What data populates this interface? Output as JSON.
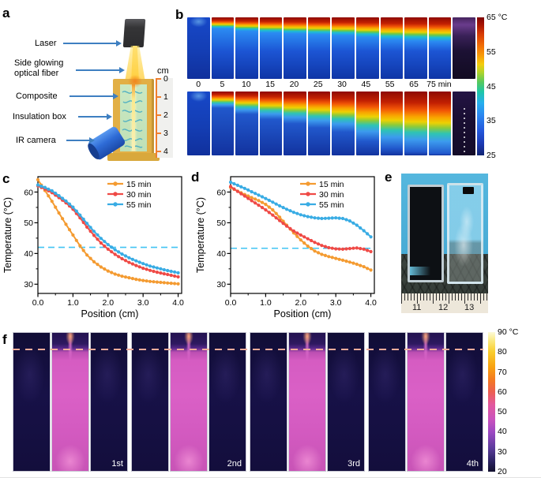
{
  "figure": {
    "panels": {
      "a": "a",
      "b": "b",
      "c": "c",
      "d": "d",
      "e": "e",
      "f": "f"
    }
  },
  "panel_a": {
    "labels": {
      "laser": "Laser",
      "fiber1": "Side glowing",
      "fiber2": "optical fiber",
      "composite": "Composite",
      "box": "Insulation box",
      "camera": "IR camera"
    },
    "ruler": {
      "unit": "cm",
      "ticks": [
        "0",
        "1",
        "2",
        "3",
        "4"
      ]
    }
  },
  "panel_b": {
    "time_labels": [
      "0",
      "5",
      "10",
      "15",
      "20",
      "25",
      "30",
      "45",
      "55",
      "65",
      "75 min"
    ],
    "top_hot_pct": [
      0,
      13,
      16,
      18,
      19,
      20,
      21,
      23,
      26,
      27,
      28
    ],
    "bottom_hot_pct": [
      0,
      16,
      22,
      27,
      31,
      35,
      39,
      48,
      55,
      58,
      60
    ],
    "colorbar_ticks": [
      "65 °C",
      "55",
      "45",
      "35",
      "25"
    ]
  },
  "chart_data": [
    {
      "panel": "c",
      "type": "line",
      "xlabel": "Position (cm)",
      "ylabel": "Temperature (°C)",
      "x_start": 0,
      "x_step": 0.2,
      "xlim": [
        0,
        4.1
      ],
      "ylim": [
        27,
        65
      ],
      "xticks": [
        0,
        1,
        2,
        3,
        4
      ],
      "xtick_labels": [
        "0.0",
        "1.0",
        "2.0",
        "3.0",
        "4.0"
      ],
      "yticks": [
        30,
        40,
        50,
        60
      ],
      "dashed_line_y": 42,
      "dashed_color": "#41C4F4",
      "legend_position": "top-right",
      "series": [
        {
          "name": "15 min",
          "color": "#F49B31",
          "values": [
            64,
            60.5,
            57,
            53.2,
            49.5,
            46,
            42.5,
            39.5,
            37.3,
            35.6,
            34.3,
            33.3,
            32.6,
            32.1,
            31.6,
            31.2,
            30.9,
            30.7,
            30.5,
            30.3,
            30.1
          ]
        },
        {
          "name": "30 min",
          "color": "#EF4A46",
          "values": [
            62,
            61,
            59.8,
            58.2,
            56.5,
            54.4,
            51.6,
            48.6,
            45.9,
            43.4,
            41.4,
            39.7,
            38.3,
            37.1,
            36.1,
            35.2,
            34.5,
            33.9,
            33.4,
            32.9,
            32.4
          ]
        },
        {
          "name": "55 min",
          "color": "#39ACE4",
          "values": [
            62.3,
            61.5,
            60.4,
            58.8,
            57.1,
            55.1,
            52.5,
            49.8,
            47.2,
            44.9,
            42.9,
            41.2,
            39.8,
            38.6,
            37.6,
            36.7,
            35.9,
            35.3,
            34.7,
            34.2,
            33.7
          ]
        }
      ]
    },
    {
      "panel": "d",
      "type": "line",
      "xlabel": "Position (cm)",
      "ylabel": "Temperature (°C)",
      "x_start": 0,
      "x_step": 0.2,
      "xlim": [
        0,
        4.1
      ],
      "ylim": [
        27,
        65
      ],
      "xticks": [
        0,
        1,
        2,
        3,
        4
      ],
      "xtick_labels": [
        "0.0",
        "1.0",
        "2.0",
        "3.0",
        "4.0"
      ],
      "yticks": [
        30,
        40,
        50,
        60
      ],
      "dashed_line_y": 41.7,
      "dashed_color": "#41C4F4",
      "legend_position": "top-right",
      "series": [
        {
          "name": "15 min",
          "color": "#F49B31",
          "values": [
            61.5,
            60.3,
            59.2,
            58.2,
            57.2,
            56,
            54.2,
            51.8,
            49.2,
            46.7,
            44.4,
            42.4,
            40.8,
            39.7,
            39,
            38.4,
            37.8,
            37.2,
            36.5,
            35.7,
            34.6
          ]
        },
        {
          "name": "30 min",
          "color": "#EF4A46",
          "values": [
            61.8,
            60.2,
            58.7,
            57.2,
            55.7,
            54.2,
            52.5,
            50.7,
            48.9,
            47.3,
            46,
            44.8,
            43.6,
            42.6,
            41.9,
            41.5,
            41.4,
            41.6,
            41.8,
            41.4,
            40.6
          ]
        },
        {
          "name": "55 min",
          "color": "#39ACE4",
          "values": [
            63.2,
            62.2,
            61.2,
            60.1,
            59,
            57.9,
            56.7,
            55.5,
            54.4,
            53.4,
            52.6,
            52,
            51.6,
            51.4,
            51.5,
            51.6,
            51.4,
            50.6,
            49.2,
            47.4,
            45.4
          ]
        }
      ]
    }
  ],
  "panel_e": {
    "ruler_numbers": [
      "11",
      "12",
      "13"
    ]
  },
  "panel_f": {
    "cycle_labels": [
      "1st",
      "2nd",
      "3rd",
      "4th"
    ],
    "colorbar_ticks": [
      "90 °C",
      "80",
      "70",
      "60",
      "50",
      "40",
      "30",
      "20"
    ]
  }
}
